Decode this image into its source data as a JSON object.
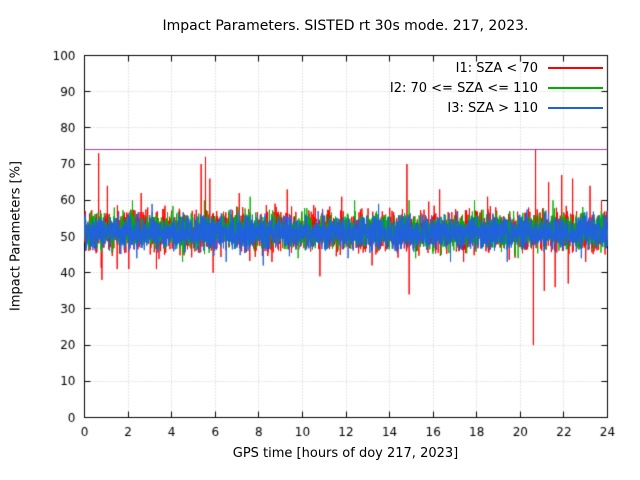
{
  "chart_data": {
    "type": "line",
    "title": "Impact Parameters. SISTED rt 30s mode. 217, 2023.",
    "xlabel": "GPS time [hours of doy 217, 2023]",
    "ylabel": "Impact Parameters [%]",
    "xlim": [
      0,
      24
    ],
    "ylim": [
      0,
      100
    ],
    "xticks": [
      0,
      2,
      4,
      6,
      8,
      10,
      12,
      14,
      16,
      18,
      20,
      22,
      24
    ],
    "yticks": [
      0,
      10,
      20,
      30,
      40,
      50,
      60,
      70,
      80,
      90,
      100
    ],
    "grid": true,
    "legend_position": "top-right-inside",
    "sample_interval_seconds": 30,
    "threshold_line": {
      "y": 74,
      "color": "#a040a0"
    },
    "series": [
      {
        "name": "I1: SZA < 70",
        "color": "#ff0000",
        "baseline": 51.5,
        "sigma": 2.8,
        "range": [
          41,
          62
        ],
        "burst_prob": 0.006,
        "burst_amp": 9,
        "extremes": [
          [
            0.65,
            73
          ],
          [
            0.8,
            38
          ],
          [
            1.05,
            64
          ],
          [
            1.5,
            41
          ],
          [
            2.6,
            62
          ],
          [
            3.3,
            41
          ],
          [
            5.35,
            70
          ],
          [
            5.55,
            72
          ],
          [
            5.75,
            66
          ],
          [
            5.9,
            40
          ],
          [
            7.1,
            62
          ],
          [
            8.6,
            43
          ],
          [
            9.3,
            63
          ],
          [
            10.8,
            39
          ],
          [
            11.8,
            61
          ],
          [
            13.2,
            42
          ],
          [
            14.8,
            70
          ],
          [
            14.9,
            34
          ],
          [
            16.3,
            63
          ],
          [
            17.4,
            43
          ],
          [
            18.5,
            61
          ],
          [
            20.6,
            20
          ],
          [
            20.7,
            74
          ],
          [
            21.1,
            35
          ],
          [
            21.3,
            65
          ],
          [
            21.6,
            36
          ],
          [
            21.9,
            67
          ],
          [
            22.2,
            37
          ],
          [
            22.4,
            66
          ],
          [
            23.0,
            43
          ],
          [
            23.2,
            64
          ]
        ]
      },
      {
        "name": "I2: 70 <= SZA <= 110",
        "color": "#00b000",
        "baseline": 51.5,
        "sigma": 2.4,
        "range": [
          44,
          60
        ],
        "extremes": [
          [
            2.2,
            60
          ],
          [
            4.5,
            43
          ],
          [
            5.5,
            60
          ],
          [
            7.6,
            61
          ],
          [
            9.8,
            44
          ],
          [
            12.4,
            60
          ],
          [
            14.9,
            60
          ],
          [
            15.2,
            44
          ],
          [
            17.9,
            60
          ],
          [
            19.9,
            44
          ],
          [
            21.5,
            60
          ]
        ]
      },
      {
        "name": "I3: SZA > 110",
        "color": "#2060df",
        "baseline": 51.0,
        "sigma": 2.3,
        "range": [
          44,
          59
        ],
        "extremes": [
          [
            2.4,
            44
          ],
          [
            3.1,
            59
          ],
          [
            6.5,
            43
          ],
          [
            8.2,
            42
          ],
          [
            12.1,
            44
          ],
          [
            13.5,
            59
          ],
          [
            16.8,
            43
          ],
          [
            19.4,
            43
          ],
          [
            22.8,
            44
          ]
        ]
      }
    ]
  }
}
